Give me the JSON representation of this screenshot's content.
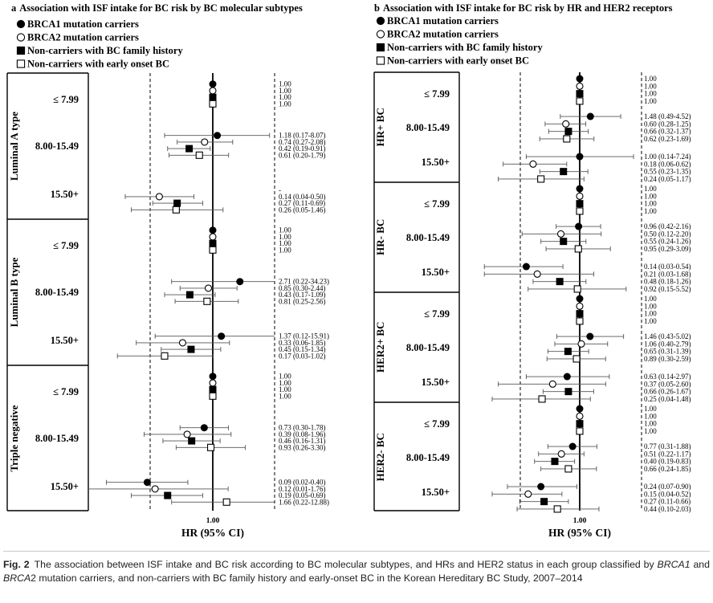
{
  "figure_label": "Fig. 2",
  "caption_parts": [
    {
      "text": "The association between ISF intake and BC risk according to BC molecular subtypes, and HRs and HER2 status in each group classified by ",
      "italic": false
    },
    {
      "text": "BRCA1",
      "italic": true
    },
    {
      "text": " and ",
      "italic": false
    },
    {
      "text": "BRCA",
      "italic": true
    },
    {
      "text": "2 mutation carriers, and non-carriers with BC family history and early-onset BC in the Korean Hereditary BC Study, 2007–2014",
      "italic": false
    }
  ],
  "legend": [
    {
      "marker": "filled-circle",
      "label": "BRCA1 mutation carriers"
    },
    {
      "marker": "open-circle",
      "label": "BRCA2 mutation carriers"
    },
    {
      "marker": "filled-square",
      "label": "Non-carriers with BC family history"
    },
    {
      "marker": "open-square",
      "label": "Non-carriers with early onset BC"
    }
  ],
  "chart_data": [
    {
      "type": "forest",
      "panel": "a",
      "title": "Association with ISF intake for BC risk by BC molecular subtypes",
      "xlabel": "HR (95% CI)",
      "xtick": "1.00",
      "scale": "log",
      "grid": false,
      "legend_position": "top-left",
      "series": [
        "BRCA1 mutation carriers",
        "BRCA2 mutation carriers",
        "Non-carriers with BC family history",
        "Non-carriers with early onset BC"
      ],
      "groups": [
        {
          "name": "Luminal A type",
          "categories": [
            {
              "label": "≤ 7.99",
              "hr": [
                1.0,
                1.0,
                1.0,
                1.0
              ],
              "ci": [
                null,
                null,
                null,
                null
              ],
              "text": [
                "1.00",
                "1.00",
                "1.00",
                "1.00"
              ]
            },
            {
              "label": "8.00-15.49",
              "hr": [
                1.18,
                0.74,
                0.42,
                0.61
              ],
              "ci": [
                [
                  0.17,
                  8.07
                ],
                [
                  0.27,
                  2.08
                ],
                [
                  0.19,
                  0.91
                ],
                [
                  0.2,
                  1.79
                ]
              ],
              "text": [
                "1.18 (0.17-8.07)",
                "0.74 (0.27-2.08)",
                "0.42 (0.19-0.91)",
                "0.61 (0.20-1.79)"
              ]
            },
            {
              "label": "15.50+",
              "hr": [
                null,
                0.14,
                0.27,
                0.26
              ],
              "ci": [
                null,
                [
                  0.04,
                  0.5
                ],
                [
                  0.11,
                  0.69
                ],
                [
                  0.05,
                  1.46
                ]
              ],
              "text": [
                "-",
                "0.14 (0.04-0.50)",
                "0.27 (0.11-0.69)",
                "0.26 (0.05-1.46)"
              ]
            }
          ]
        },
        {
          "name": "Luminal B type",
          "categories": [
            {
              "label": "≤ 7.99",
              "hr": [
                1.0,
                1.0,
                1.0,
                1.0
              ],
              "ci": [
                null,
                null,
                null,
                null
              ],
              "text": [
                "1.00",
                "1.00",
                "1.00",
                "1.00"
              ]
            },
            {
              "label": "8.00-15.49",
              "hr": [
                2.71,
                0.85,
                0.43,
                0.81
              ],
              "ci": [
                [
                  0.22,
                  34.23
                ],
                [
                  0.3,
                  2.44
                ],
                [
                  0.17,
                  1.09
                ],
                [
                  0.25,
                  2.56
                ]
              ],
              "text": [
                "2.71 (0.22-34.23)",
                "0.85 (0.30-2.44)",
                "0.43 (0.17-1.09)",
                "0.81 (0.25-2.56)"
              ]
            },
            {
              "label": "15.50+",
              "hr": [
                1.37,
                0.33,
                0.45,
                0.17
              ],
              "ci": [
                [
                  0.12,
                  15.91
                ],
                [
                  0.06,
                  1.85
                ],
                [
                  0.15,
                  1.34
                ],
                [
                  0.03,
                  1.02
                ]
              ],
              "text": [
                "1.37 (0.12-15.91)",
                "0.33 (0.06-1.85)",
                "0.45 (0.15-1.34)",
                "0.17 (0.03-1.02)"
              ]
            }
          ]
        },
        {
          "name": "Triple negative",
          "categories": [
            {
              "label": "≤ 7.99",
              "hr": [
                1.0,
                1.0,
                1.0,
                1.0
              ],
              "ci": [
                null,
                null,
                null,
                null
              ],
              "text": [
                "1.00",
                "1.00",
                "1.00",
                "1.00"
              ]
            },
            {
              "label": "8.00-15.49",
              "hr": [
                0.73,
                0.39,
                0.46,
                0.93
              ],
              "ci": [
                [
                  0.3,
                  1.78
                ],
                [
                  0.08,
                  1.96
                ],
                [
                  0.16,
                  1.31
                ],
                [
                  0.26,
                  3.3
                ]
              ],
              "text": [
                "0.73 (0.30-1.78)",
                "0.39 (0.08-1.96)",
                "0.46 (0.16-1.31)",
                "0.93 (0.26-3.30)"
              ]
            },
            {
              "label": "15.50+",
              "hr": [
                0.09,
                0.12,
                0.19,
                1.66
              ],
              "ci": [
                [
                  0.02,
                  0.4
                ],
                [
                  0.01,
                  1.76
                ],
                [
                  0.05,
                  0.69
                ],
                [
                  0.22,
                  12.88
                ]
              ],
              "text": [
                "0.09 (0.02-0.40)",
                "0.12 (0.01-1.76)",
                "0.19 (0.05-0.69)",
                "1.66 (0.22-12.88)"
              ]
            }
          ]
        }
      ]
    },
    {
      "type": "forest",
      "panel": "b",
      "title": "Association with ISF intake for BC risk by HR and HER2 receptors",
      "xlabel": "HR (95% CI)",
      "xtick": "1.00",
      "scale": "log",
      "grid": false,
      "legend_position": "top-left",
      "series": [
        "BRCA1 mutation carriers",
        "BRCA2 mutation carriers",
        "Non-carriers with BC family history",
        "Non-carriers with early onset BC"
      ],
      "groups": [
        {
          "name": "HR+ BC",
          "categories": [
            {
              "label": "≤ 7.99",
              "hr": [
                1.0,
                1.0,
                1.0,
                1.0
              ],
              "ci": [
                null,
                null,
                null,
                null
              ],
              "text": [
                "1.00",
                "1.00",
                "1.00",
                "1.00"
              ]
            },
            {
              "label": "8.00-15.49",
              "hr": [
                1.48,
                0.6,
                0.66,
                0.62
              ],
              "ci": [
                [
                  0.49,
                  4.52
                ],
                [
                  0.28,
                  1.25
                ],
                [
                  0.32,
                  1.37
                ],
                [
                  0.23,
                  1.69
                ]
              ],
              "text": [
                "1.48 (0.49-4.52)",
                "0.60 (0.28-1.25)",
                "0.66 (0.32-1.37)",
                "0.62 (0.23-1.69)"
              ]
            },
            {
              "label": "15.50+",
              "hr": [
                1.0,
                0.18,
                0.55,
                0.24
              ],
              "ci": [
                [
                  0.14,
                  7.24
                ],
                [
                  0.06,
                  0.62
                ],
                [
                  0.23,
                  1.35
                ],
                [
                  0.05,
                  1.17
                ]
              ],
              "text": [
                "1.00 (0.14-7.24)",
                "0.18 (0.06-0.62)",
                "0.55 (0.23-1.35)",
                "0.24 (0.05-1.17)"
              ]
            }
          ]
        },
        {
          "name": "HR- BC",
          "categories": [
            {
              "label": "≤ 7.99",
              "hr": [
                1.0,
                1.0,
                1.0,
                1.0
              ],
              "ci": [
                null,
                null,
                null,
                null
              ],
              "text": [
                "1.00",
                "1.00",
                "1.00",
                "1.00"
              ]
            },
            {
              "label": "8.00-15.49",
              "hr": [
                0.96,
                0.5,
                0.55,
                0.95
              ],
              "ci": [
                [
                  0.42,
                  2.16
                ],
                [
                  0.12,
                  2.2
                ],
                [
                  0.24,
                  1.26
                ],
                [
                  0.29,
                  3.09
                ]
              ],
              "text": [
                "0.96 (0.42-2.16)",
                "0.50 (0.12-2.20)",
                "0.55 (0.24-1.26)",
                "0.95 (0.29-3.09)"
              ]
            },
            {
              "label": "15.50+",
              "hr": [
                0.14,
                0.21,
                0.48,
                0.92
              ],
              "ci": [
                [
                  0.03,
                  0.54
                ],
                [
                  0.03,
                  1.68
                ],
                [
                  0.18,
                  1.26
                ],
                [
                  0.15,
                  5.52
                ]
              ],
              "text": [
                "0.14 (0.03-0.54)",
                "0.21 (0.03-1.68)",
                "0.48 (0.18-1.26)",
                "0.92 (0.15-5.52)"
              ]
            }
          ]
        },
        {
          "name": "HER2+ BC",
          "categories": [
            {
              "label": "≤ 7.99",
              "hr": [
                1.0,
                1.0,
                1.0,
                1.0
              ],
              "ci": [
                null,
                null,
                null,
                null
              ],
              "text": [
                "1.00",
                "1.00",
                "1.00",
                "1.00"
              ]
            },
            {
              "label": "8.00-15.49",
              "hr": [
                1.46,
                1.06,
                0.65,
                0.89
              ],
              "ci": [
                [
                  0.43,
                  5.02
                ],
                [
                  0.4,
                  2.79
                ],
                [
                  0.31,
                  1.39
                ],
                [
                  0.3,
                  2.59
                ]
              ],
              "text": [
                "1.46 (0.43-5.02)",
                "1.06 (0.40-2.79)",
                "0.65 (0.31-1.39)",
                "0.89 (0.30-2.59)"
              ]
            },
            {
              "label": "15.50+",
              "hr": [
                0.63,
                0.37,
                0.66,
                0.25
              ],
              "ci": [
                [
                  0.14,
                  2.97
                ],
                [
                  0.05,
                  2.6
                ],
                [
                  0.26,
                  1.67
                ],
                [
                  0.04,
                  1.48
                ]
              ],
              "text": [
                "0.63 (0.14-2.97)",
                "0.37 (0.05-2.60)",
                "0.66 (0.26-1.67)",
                "0.25 (0.04-1.48)"
              ]
            }
          ]
        },
        {
          "name": "HER2- BC",
          "categories": [
            {
              "label": "≤ 7.99",
              "hr": [
                1.0,
                1.0,
                1.0,
                1.0
              ],
              "ci": [
                null,
                null,
                null,
                null
              ],
              "text": [
                "1.00",
                "1.00",
                "1.00",
                "1.00"
              ]
            },
            {
              "label": "8.00-15.49",
              "hr": [
                0.77,
                0.51,
                0.4,
                0.66
              ],
              "ci": [
                [
                  0.31,
                  1.88
                ],
                [
                  0.22,
                  1.17
                ],
                [
                  0.19,
                  0.83
                ],
                [
                  0.24,
                  1.85
                ]
              ],
              "text": [
                "0.77 (0.31-1.88)",
                "0.51 (0.22-1.17)",
                "0.40 (0.19-0.83)",
                "0.66 (0.24-1.85)"
              ]
            },
            {
              "label": "15.50+",
              "hr": [
                0.24,
                0.15,
                0.27,
                0.44
              ],
              "ci": [
                [
                  0.07,
                  0.9
                ],
                [
                  0.04,
                  0.52
                ],
                [
                  0.11,
                  0.66
                ],
                [
                  0.1,
                  2.03
                ]
              ],
              "text": [
                "0.24 (0.07-0.90)",
                "0.15 (0.04-0.52)",
                "0.27 (0.11-0.66)",
                "0.44 (0.10-2.03)"
              ]
            }
          ]
        }
      ]
    }
  ]
}
